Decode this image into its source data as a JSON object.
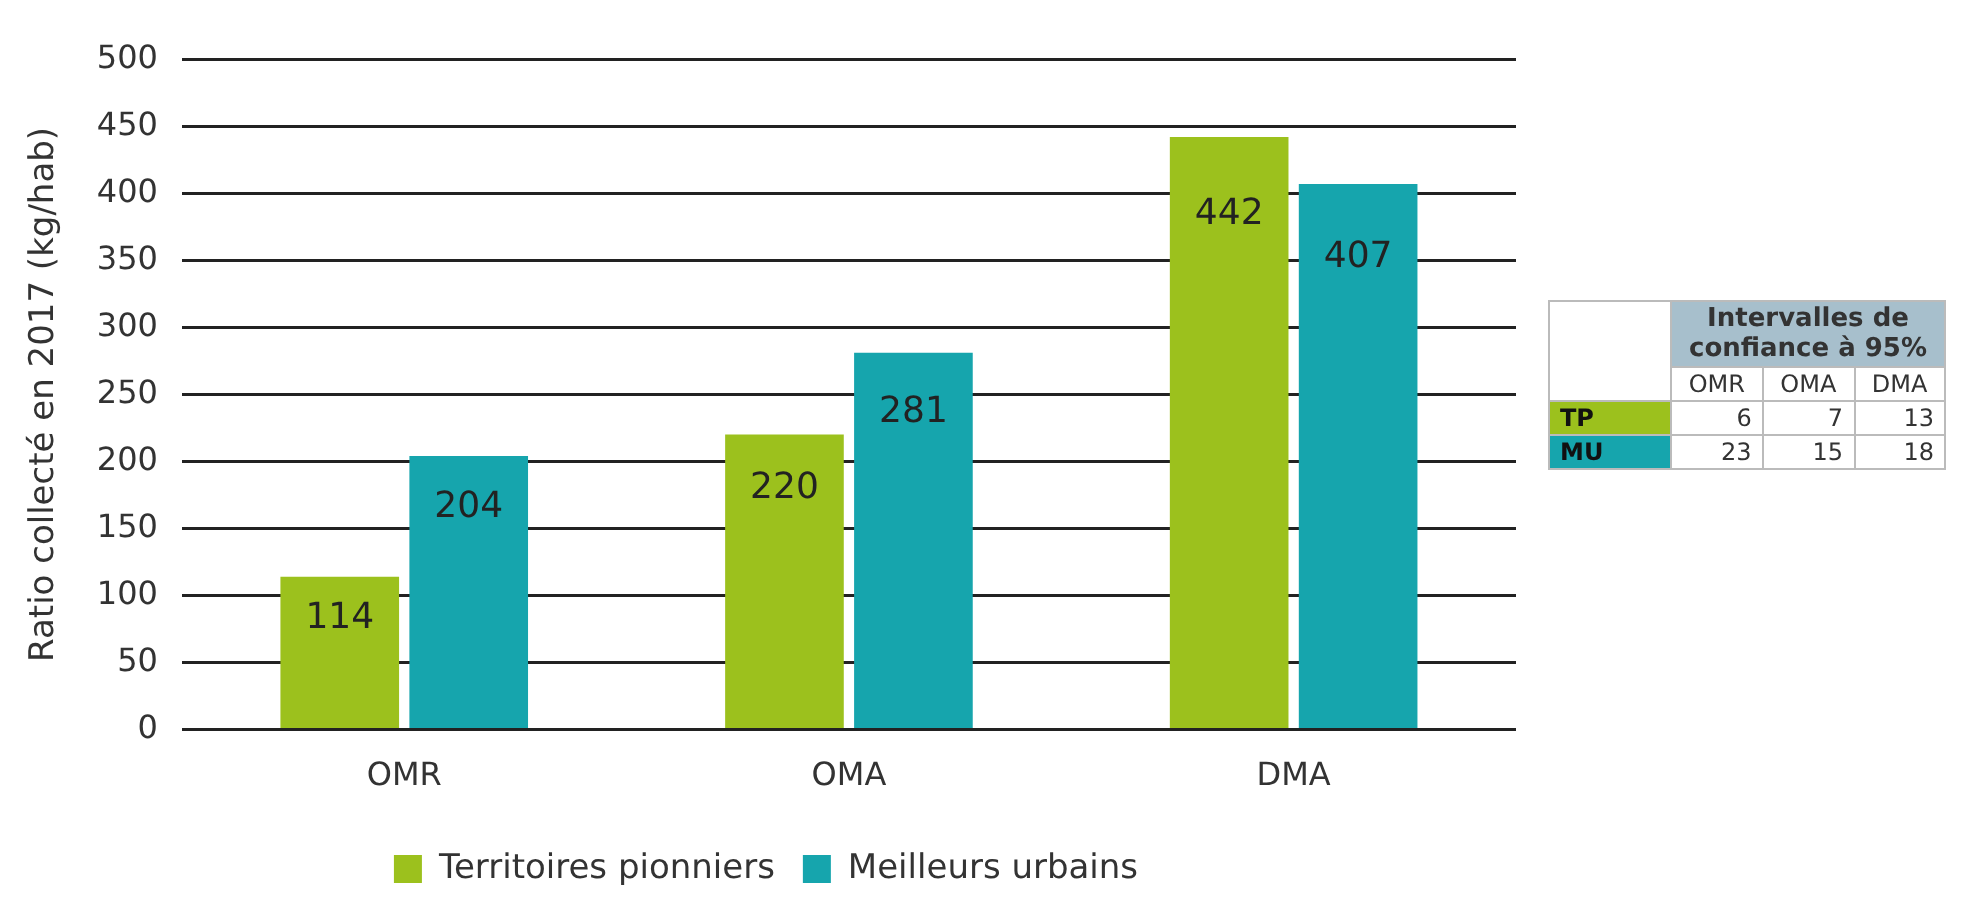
{
  "chart_data": [
    {
      "type": "bar",
      "ylabel": "Ratio collecté en 2017 (kg/hab)",
      "categories": [
        "OMR",
        "OMA",
        "DMA"
      ],
      "series": [
        {
          "name": "Territoires pionniers",
          "color": "#9cc11d",
          "values": [
            114,
            220,
            442
          ]
        },
        {
          "name": "Meilleurs urbains",
          "color": "#16a5ad",
          "values": [
            204,
            281,
            407
          ]
        }
      ],
      "ylim": [
        0,
        500
      ],
      "yticks": [
        0,
        50,
        100,
        150,
        200,
        250,
        300,
        350,
        400,
        450,
        500
      ],
      "grid": "y",
      "legend": "bottom",
      "data_labels": true
    },
    {
      "type": "other",
      "title": "Intervalles de confiance à 95%",
      "categories": [
        "OMR",
        "OMA",
        "DMA"
      ],
      "y_categories": [
        "TP",
        "MU"
      ],
      "cell_labels": [
        [
          "6",
          "7",
          "13"
        ],
        [
          "23",
          "15",
          "18"
        ]
      ],
      "colors": [
        "#9cc11d",
        "#16a5ad"
      ]
    }
  ]
}
